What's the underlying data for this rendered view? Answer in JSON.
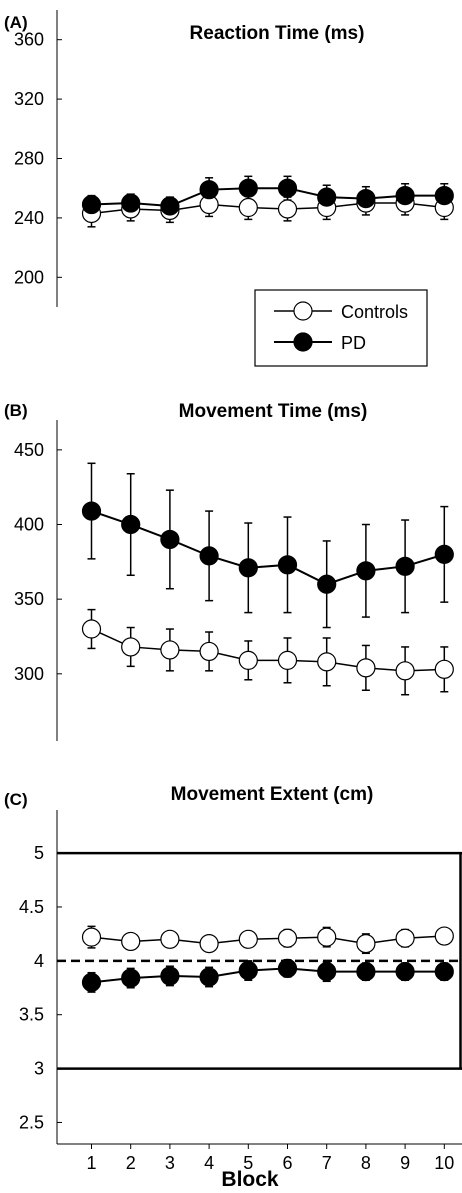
{
  "chart_data": [
    {
      "type": "line",
      "panel_label": "(A)",
      "title": "Reaction Time (ms)",
      "xlabel": "",
      "ylabel": "",
      "x": [
        1,
        2,
        3,
        4,
        5,
        6,
        7,
        8,
        9,
        10
      ],
      "ylim": [
        180,
        380
      ],
      "yticks": [
        200,
        240,
        280,
        320,
        360
      ],
      "grid": false,
      "legend": {
        "placement": "bottom-right",
        "entries": [
          "Controls",
          "PD"
        ]
      },
      "series": [
        {
          "name": "Controls",
          "marker": "open-circle",
          "values": [
            243,
            246,
            245,
            249,
            247,
            246,
            247,
            250,
            250,
            247
          ],
          "errors": [
            9,
            8,
            8,
            8,
            8,
            8,
            8,
            8,
            8,
            8
          ]
        },
        {
          "name": "PD",
          "marker": "filled-circle",
          "values": [
            249,
            250,
            248,
            259,
            260,
            260,
            254,
            253,
            255,
            255
          ],
          "errors": [
            6,
            6,
            6,
            8,
            8,
            8,
            8,
            8,
            8,
            8
          ]
        }
      ]
    },
    {
      "type": "line",
      "panel_label": "(B)",
      "title": "Movement Time (ms)",
      "xlabel": "",
      "ylabel": "",
      "x": [
        1,
        2,
        3,
        4,
        5,
        6,
        7,
        8,
        9,
        10
      ],
      "ylim": [
        255,
        470
      ],
      "yticks": [
        300,
        350,
        400,
        450
      ],
      "grid": false,
      "series": [
        {
          "name": "Controls",
          "marker": "open-circle",
          "values": [
            330,
            318,
            316,
            315,
            309,
            309,
            308,
            304,
            302,
            303
          ],
          "errors": [
            13,
            13,
            14,
            13,
            13,
            15,
            16,
            15,
            16,
            15
          ]
        },
        {
          "name": "PD",
          "marker": "filled-circle",
          "values": [
            409,
            400,
            390,
            379,
            371,
            373,
            360,
            369,
            372,
            380
          ],
          "errors": [
            32,
            34,
            33,
            30,
            30,
            32,
            29,
            31,
            31,
            32
          ]
        }
      ]
    },
    {
      "type": "line",
      "panel_label": "(C)",
      "title": "Movement Extent (cm)",
      "xlabel": "Block",
      "ylabel": "",
      "x": [
        1,
        2,
        3,
        4,
        5,
        6,
        7,
        8,
        9,
        10
      ],
      "xticks": [
        "1",
        "2",
        "3",
        "4",
        "5",
        "6",
        "7",
        "8",
        "9",
        "10"
      ],
      "ylim": [
        2.3,
        5.4
      ],
      "yticks": [
        "2.5",
        "3",
        "3.5",
        "4",
        "4.5",
        "5"
      ],
      "grid": false,
      "reference_lines": {
        "solid": [
          3,
          5
        ],
        "dashed": [
          4
        ]
      },
      "series": [
        {
          "name": "Controls",
          "marker": "open-circle",
          "values": [
            4.22,
            4.18,
            4.2,
            4.16,
            4.2,
            4.21,
            4.22,
            4.16,
            4.21,
            4.23
          ],
          "errors": [
            0.1,
            0.06,
            0.06,
            0.06,
            0.06,
            0.08,
            0.09,
            0.09,
            0.08,
            0.06
          ]
        },
        {
          "name": "PD",
          "marker": "filled-circle",
          "values": [
            3.8,
            3.84,
            3.86,
            3.85,
            3.91,
            3.93,
            3.9,
            3.9,
            3.9,
            3.9
          ],
          "errors": [
            0.09,
            0.09,
            0.09,
            0.09,
            0.09,
            0.08,
            0.09,
            0.08,
            0.08,
            0.08
          ]
        }
      ]
    }
  ]
}
